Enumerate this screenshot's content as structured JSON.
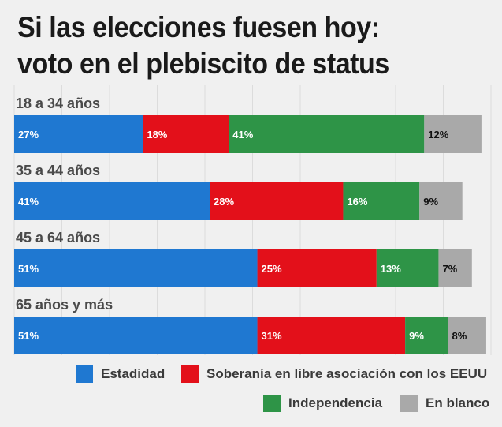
{
  "title_line1": "Si las elecciones fuesen hoy:",
  "title_line2": "voto en el plebiscito de status",
  "chart_data": {
    "type": "bar",
    "orientation": "horizontal",
    "stacked": true,
    "categories": [
      "18 a 34 años",
      "35 a 44 años",
      "45 a 64 años",
      "65 años y más"
    ],
    "series": [
      {
        "name": "Estadidad",
        "color": "#1f78d1",
        "values": [
          27,
          41,
          51,
          51
        ],
        "labels": [
          "27%",
          "41%",
          "51%",
          "51%"
        ]
      },
      {
        "name": "Soberanía en libre asociación con los EEUU",
        "color": "#e3101a",
        "values": [
          18,
          28,
          25,
          31
        ],
        "labels": [
          "18%",
          "28%",
          "25%",
          "31%"
        ]
      },
      {
        "name": "Independencia",
        "color": "#2e9447",
        "values": [
          41,
          16,
          13,
          9
        ],
        "labels": [
          "41%",
          "16%",
          "13%",
          "9%"
        ]
      },
      {
        "name": "En blanco",
        "color": "#a9a9a9",
        "values": [
          12,
          9,
          7,
          8
        ],
        "labels": [
          "12%",
          "9%",
          "7%",
          "8%"
        ]
      }
    ],
    "xlim": [
      0,
      100
    ],
    "grid": true,
    "legend_position": "bottom"
  }
}
